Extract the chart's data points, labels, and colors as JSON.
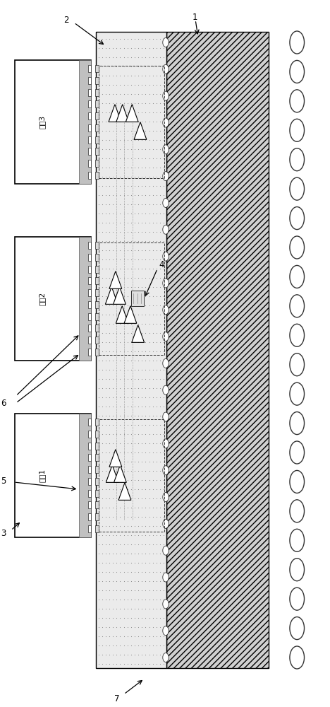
{
  "fig_width": 4.68,
  "fig_height": 10.0,
  "dpi": 100,
  "bg_color": "#ffffff",
  "die_names": [
    "裸片3",
    "裸片2",
    "裸片1"
  ],
  "num_balls": 22,
  "label_numbers": [
    "1",
    "2",
    "3",
    "4",
    "5",
    "6",
    "7"
  ]
}
